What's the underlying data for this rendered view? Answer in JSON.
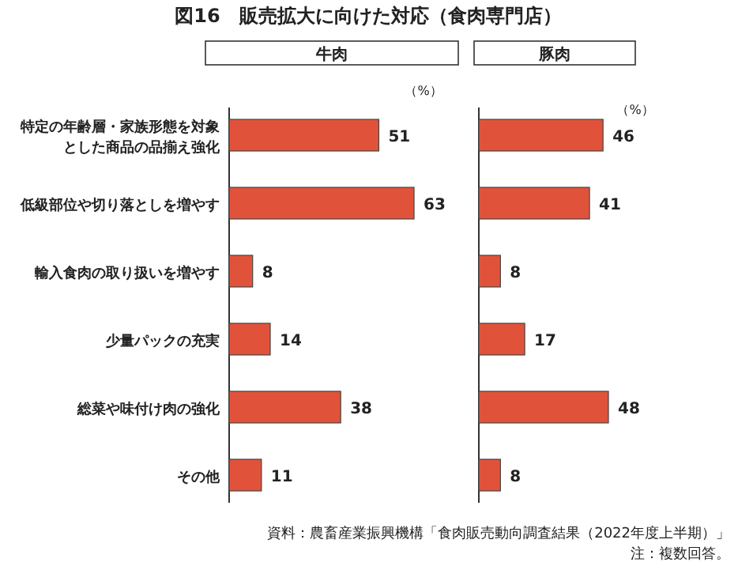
{
  "chart_data": [
    {
      "type": "bar",
      "orientation": "horizontal",
      "title": "図16　販売拡大に向けた対応（食肉専門店）",
      "subtitle": "牛肉",
      "xlabel": "（%）",
      "tick_labels": "y",
      "categories": [
        "特定の年齢層・家族形態を対象とした商品の品揃え強化",
        "低級部位や切り落としを増やす",
        "輸入食肉の取り扱いを増やす",
        "少量パックの充実",
        "総菜や味付け肉の強化",
        "その他"
      ],
      "values": [
        51,
        63,
        8,
        14,
        38,
        11
      ],
      "color": "#e0533a",
      "data_labels": true
    },
    {
      "type": "bar",
      "orientation": "horizontal",
      "subtitle": "豚肉",
      "xlabel": "（%）",
      "tick_labels": false,
      "values": [
        46,
        41,
        8,
        17,
        48,
        8
      ],
      "color": "#e0533a",
      "data_labels": true,
      "annotations": [
        "資料：農畜産業振興機構「食肉販売動向調査結果（2022年度上半期）」",
        "注：複数回答。"
      ]
    }
  ]
}
